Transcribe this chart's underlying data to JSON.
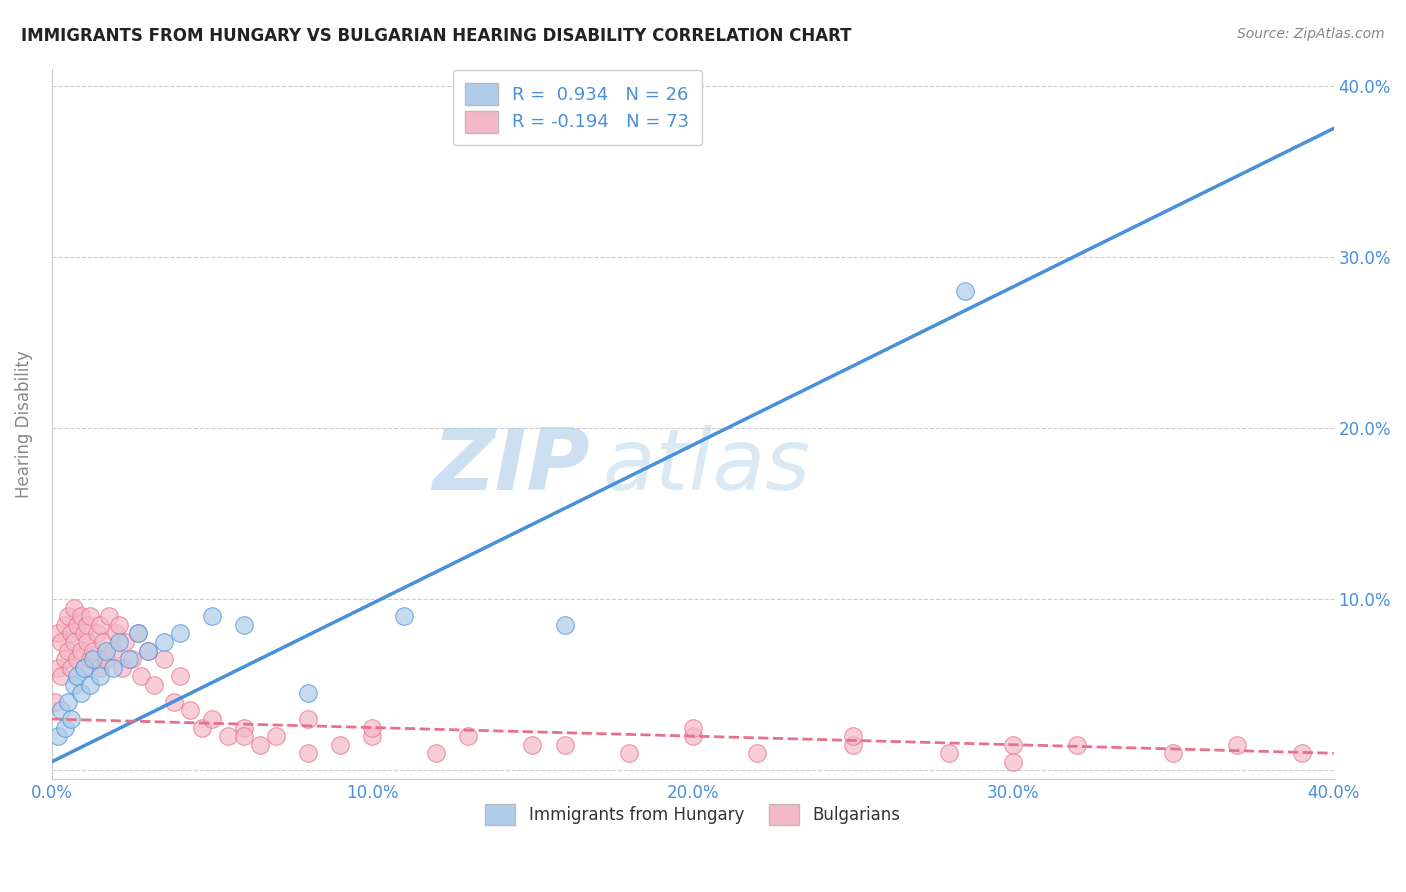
{
  "title": "IMMIGRANTS FROM HUNGARY VS BULGARIAN HEARING DISABILITY CORRELATION CHART",
  "source": "Source: ZipAtlas.com",
  "ylabel": "Hearing Disability",
  "xlim": [
    0.0,
    0.4
  ],
  "ylim": [
    -0.005,
    0.41
  ],
  "xtick_vals": [
    0.0,
    0.1,
    0.2,
    0.3,
    0.4
  ],
  "xtick_labels": [
    "0.0%",
    "10.0%",
    "20.0%",
    "30.0%",
    "40.0%"
  ],
  "ytick_vals": [
    0.0,
    0.1,
    0.2,
    0.3,
    0.4
  ],
  "ytick_labels_right": [
    "",
    "10.0%",
    "20.0%",
    "30.0%",
    "40.0%"
  ],
  "legend_r1": "R =  0.934   N = 26",
  "legend_r2": "R = -0.194   N = 73",
  "blue_color": "#aecde8",
  "pink_color": "#f4b8c8",
  "blue_line_color": "#4a90d9",
  "pink_line_color": "#e8708a",
  "watermark_zip": "ZIP",
  "watermark_atlas": "atlas",
  "blue_line_x": [
    0.0,
    0.4
  ],
  "blue_line_y": [
    0.005,
    0.375
  ],
  "pink_line_x": [
    0.0,
    0.4
  ],
  "pink_line_y": [
    0.03,
    0.01
  ],
  "blue_scatter_x": [
    0.002,
    0.003,
    0.004,
    0.005,
    0.006,
    0.007,
    0.008,
    0.009,
    0.01,
    0.012,
    0.013,
    0.015,
    0.017,
    0.019,
    0.021,
    0.024,
    0.027,
    0.03,
    0.035,
    0.04,
    0.05,
    0.06,
    0.08,
    0.11,
    0.285,
    0.16
  ],
  "blue_scatter_y": [
    0.02,
    0.035,
    0.025,
    0.04,
    0.03,
    0.05,
    0.055,
    0.045,
    0.06,
    0.05,
    0.065,
    0.055,
    0.07,
    0.06,
    0.075,
    0.065,
    0.08,
    0.07,
    0.075,
    0.08,
    0.09,
    0.085,
    0.045,
    0.09,
    0.28,
    0.085
  ],
  "pink_scatter_x": [
    0.001,
    0.002,
    0.002,
    0.003,
    0.003,
    0.004,
    0.004,
    0.005,
    0.005,
    0.006,
    0.006,
    0.007,
    0.007,
    0.008,
    0.008,
    0.009,
    0.009,
    0.01,
    0.01,
    0.011,
    0.011,
    0.012,
    0.012,
    0.013,
    0.014,
    0.015,
    0.015,
    0.016,
    0.017,
    0.018,
    0.019,
    0.02,
    0.021,
    0.022,
    0.023,
    0.025,
    0.027,
    0.028,
    0.03,
    0.032,
    0.035,
    0.038,
    0.04,
    0.043,
    0.047,
    0.05,
    0.055,
    0.06,
    0.065,
    0.07,
    0.08,
    0.09,
    0.1,
    0.12,
    0.15,
    0.18,
    0.2,
    0.22,
    0.25,
    0.28,
    0.3,
    0.32,
    0.35,
    0.37,
    0.39,
    0.3,
    0.25,
    0.2,
    0.16,
    0.13,
    0.1,
    0.08,
    0.06
  ],
  "pink_scatter_y": [
    0.04,
    0.06,
    0.08,
    0.055,
    0.075,
    0.065,
    0.085,
    0.07,
    0.09,
    0.06,
    0.08,
    0.075,
    0.095,
    0.065,
    0.085,
    0.07,
    0.09,
    0.06,
    0.08,
    0.075,
    0.085,
    0.065,
    0.09,
    0.07,
    0.08,
    0.06,
    0.085,
    0.075,
    0.065,
    0.09,
    0.07,
    0.08,
    0.085,
    0.06,
    0.075,
    0.065,
    0.08,
    0.055,
    0.07,
    0.05,
    0.065,
    0.04,
    0.055,
    0.035,
    0.025,
    0.03,
    0.02,
    0.025,
    0.015,
    0.02,
    0.01,
    0.015,
    0.02,
    0.01,
    0.015,
    0.01,
    0.02,
    0.01,
    0.015,
    0.01,
    0.005,
    0.015,
    0.01,
    0.015,
    0.01,
    0.015,
    0.02,
    0.025,
    0.015,
    0.02,
    0.025,
    0.03,
    0.02
  ]
}
